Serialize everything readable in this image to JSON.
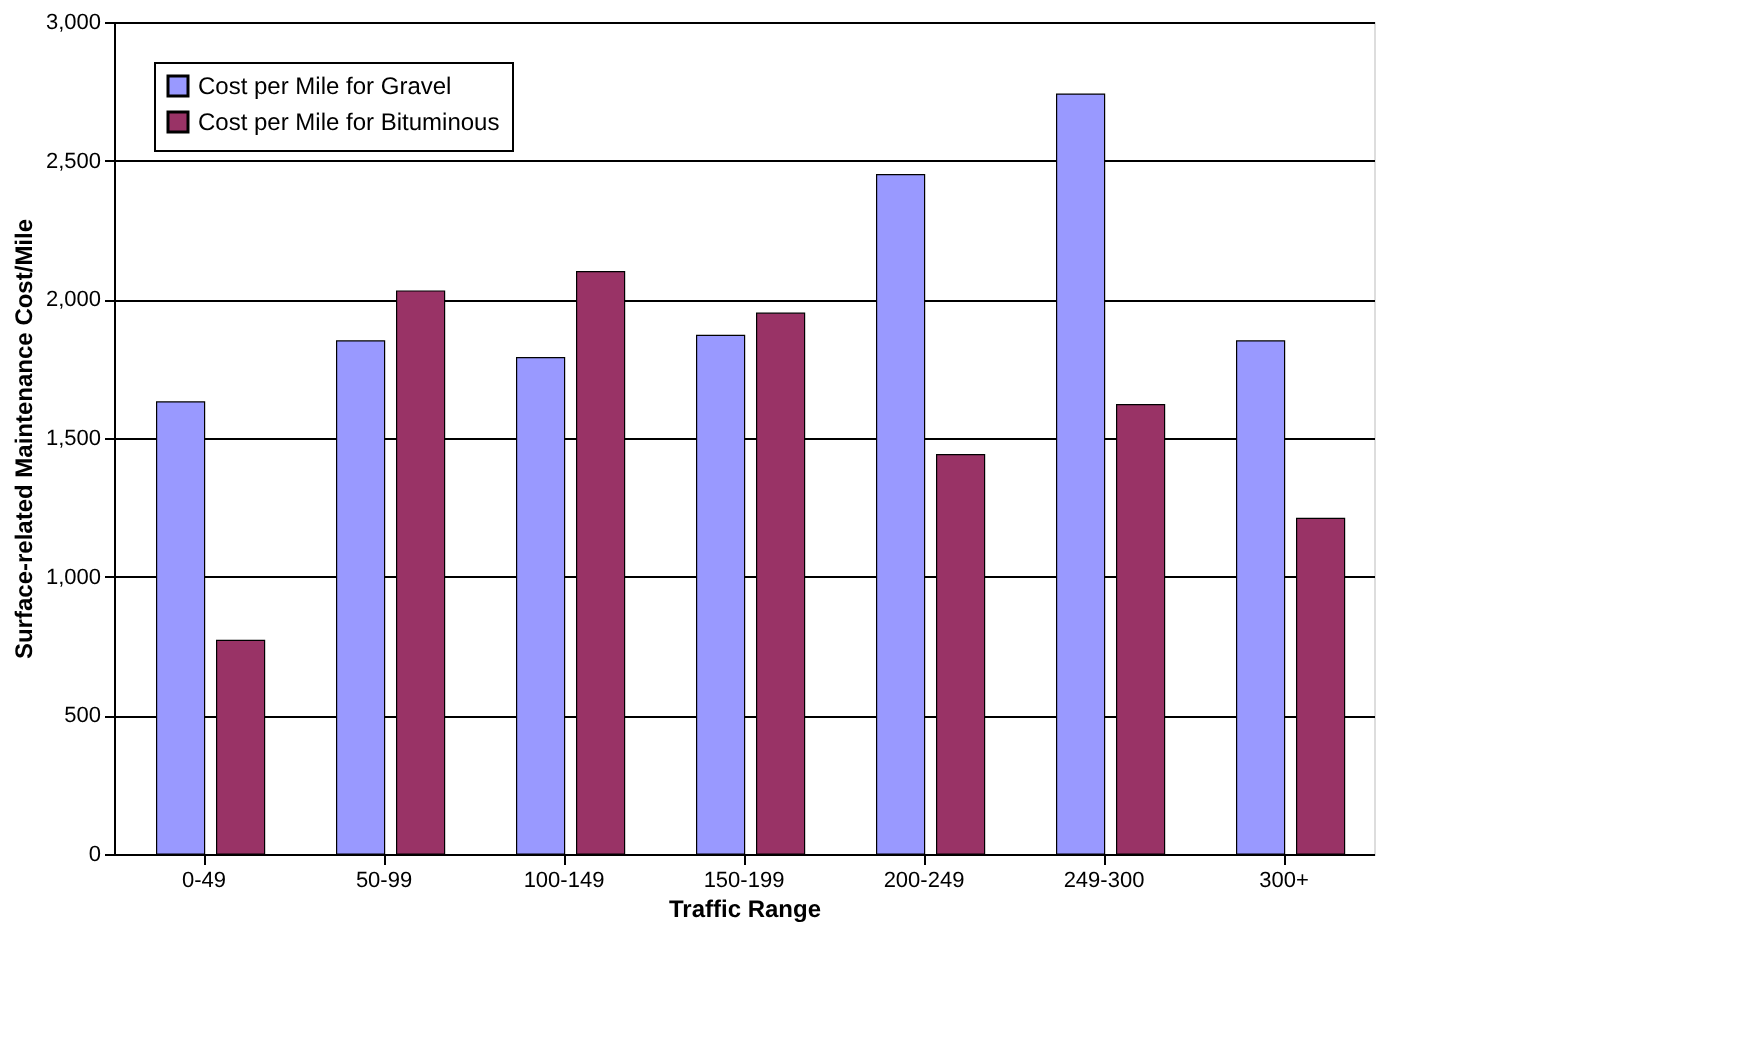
{
  "chart_data": {
    "type": "bar",
    "xlabel": "Traffic Range",
    "ylabel": "Surface-related Maintenance Cost/Mile",
    "categories": [
      "0-49",
      "50-99",
      "100-149",
      "150-199",
      "200-249",
      "249-300",
      "300+"
    ],
    "series": [
      {
        "name": "Cost per Mile for Gravel",
        "color": "#9999ff",
        "values": [
          1630,
          1850,
          1790,
          1870,
          2450,
          2740,
          1850
        ]
      },
      {
        "name": "Cost per Mile for Bituminous",
        "color": "#993366",
        "values": [
          770,
          2030,
          2100,
          1950,
          1440,
          1620,
          1210
        ]
      }
    ],
    "ylim": [
      0,
      3000
    ],
    "yticks": [
      {
        "value": 0,
        "label": "0"
      },
      {
        "value": 500,
        "label": "500"
      },
      {
        "value": 1000,
        "label": "1,000"
      },
      {
        "value": 1500,
        "label": "1,500"
      },
      {
        "value": 2000,
        "label": "2,000"
      },
      {
        "value": 2500,
        "label": "2,500"
      },
      {
        "value": 3000,
        "label": "3,000"
      }
    ],
    "grid": "y",
    "legend": "top left"
  }
}
